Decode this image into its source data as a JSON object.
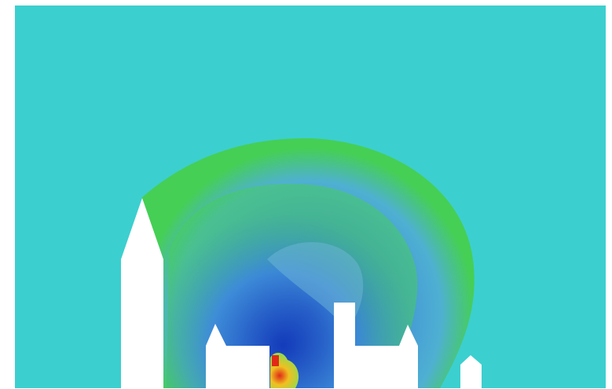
{
  "colors": {
    "ambient": "#3ccfcf",
    "blast_front": "#45cf55",
    "low_pressure_mid": "#3d8bd8",
    "low_pressure_deep": "#1034b8",
    "fireball_core": "#e02a18",
    "fireball_mid": "#f0c020",
    "fireball_outer": "#9ad84a",
    "buildings": "#ffffff",
    "page_border": "#ffffff"
  },
  "scene": {
    "type": "blast-wave-simulation",
    "colormap": "jet",
    "elements": [
      "ambient-field",
      "blast-shell",
      "rarefaction-zone",
      "fireball",
      "building-silhouettes"
    ]
  }
}
